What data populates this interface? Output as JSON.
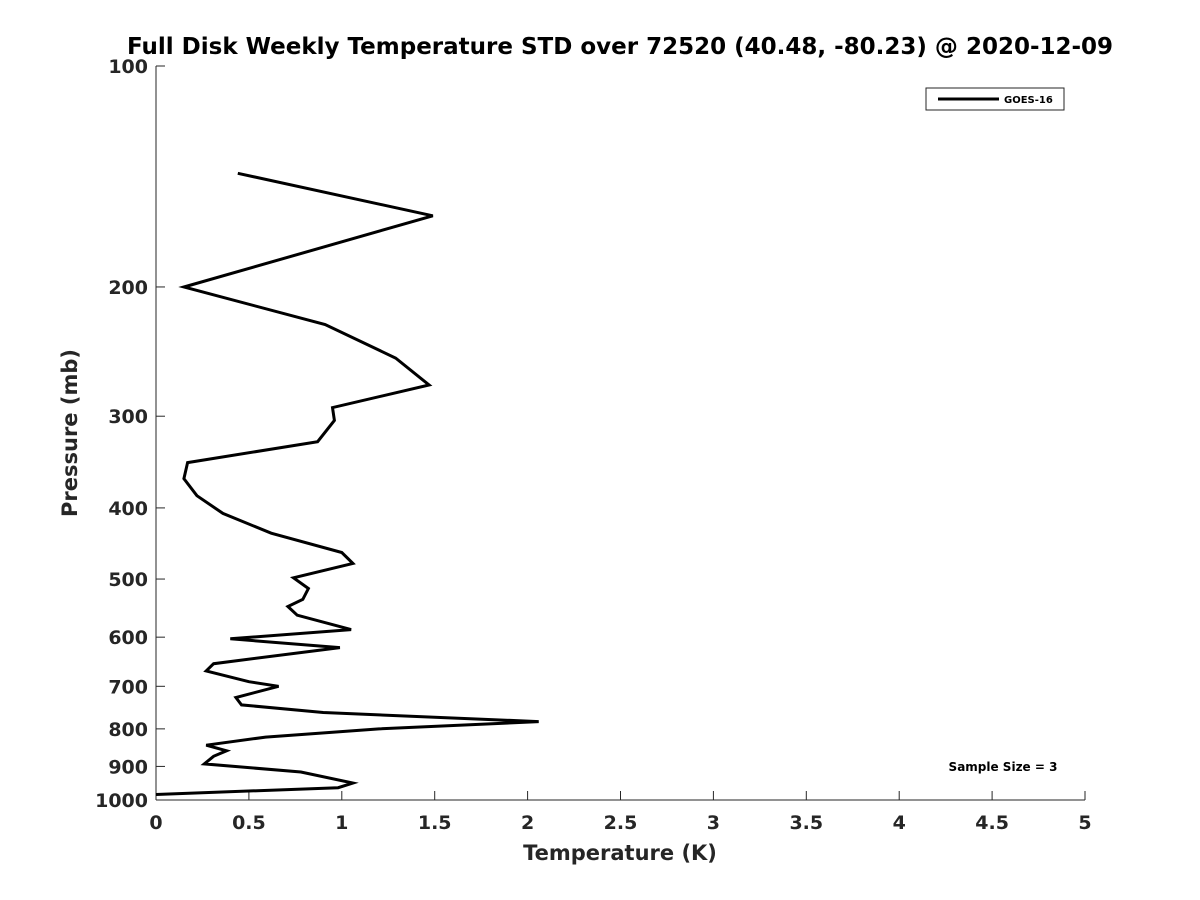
{
  "chart_data": {
    "type": "line",
    "title": "Full Disk Weekly Temperature STD over 72520 (40.48, -80.23) @ 2020-12-09",
    "xlabel": "Temperature (K)",
    "ylabel": "Pressure (mb)",
    "xlim": [
      0,
      5
    ],
    "ylim": [
      100,
      1000
    ],
    "y_scale": "log",
    "y_reversed": true,
    "xticks": [
      0,
      0.5,
      1,
      1.5,
      2,
      2.5,
      3,
      3.5,
      4,
      4.5,
      5
    ],
    "xtick_labels": [
      "0",
      "0.5",
      "1",
      "1.5",
      "2",
      "2.5",
      "3",
      "3.5",
      "4",
      "4.5",
      "5"
    ],
    "yticks": [
      100,
      200,
      300,
      400,
      500,
      600,
      700,
      800,
      900,
      1000
    ],
    "ytick_labels": [
      "100",
      "200",
      "300",
      "400",
      "500",
      "600",
      "700",
      "800",
      "900",
      "1000"
    ],
    "grid": false,
    "legend_position": "top-right",
    "annotation": "Sample Size = 3",
    "series": [
      {
        "name": "GOES-16",
        "color": "#000000",
        "points": [
          [
            0.44,
            140
          ],
          [
            1.49,
            160
          ],
          [
            0.15,
            200
          ],
          [
            0.91,
            225
          ],
          [
            1.29,
            250
          ],
          [
            1.47,
            272
          ],
          [
            0.95,
            292
          ],
          [
            0.96,
            304
          ],
          [
            0.87,
            325
          ],
          [
            0.17,
            347
          ],
          [
            0.15,
            365
          ],
          [
            0.22,
            385
          ],
          [
            0.36,
            407
          ],
          [
            0.62,
            433
          ],
          [
            1.0,
            460
          ],
          [
            1.06,
            476
          ],
          [
            0.74,
            498
          ],
          [
            0.82,
            515
          ],
          [
            0.79,
            533
          ],
          [
            0.71,
            545
          ],
          [
            0.76,
            560
          ],
          [
            1.05,
            586
          ],
          [
            0.4,
            603
          ],
          [
            0.99,
            620
          ],
          [
            0.31,
            652
          ],
          [
            0.27,
            667
          ],
          [
            0.5,
            690
          ],
          [
            0.66,
            700
          ],
          [
            0.43,
            725
          ],
          [
            0.46,
            742
          ],
          [
            0.9,
            760
          ],
          [
            2.06,
            782
          ],
          [
            1.2,
            800
          ],
          [
            0.59,
            821
          ],
          [
            0.27,
            842
          ],
          [
            0.38,
            857
          ],
          [
            0.31,
            872
          ],
          [
            0.26,
            893
          ],
          [
            0.78,
            916
          ],
          [
            1.06,
            948
          ],
          [
            0.98,
            962
          ],
          [
            0.0,
            983
          ]
        ]
      }
    ]
  }
}
